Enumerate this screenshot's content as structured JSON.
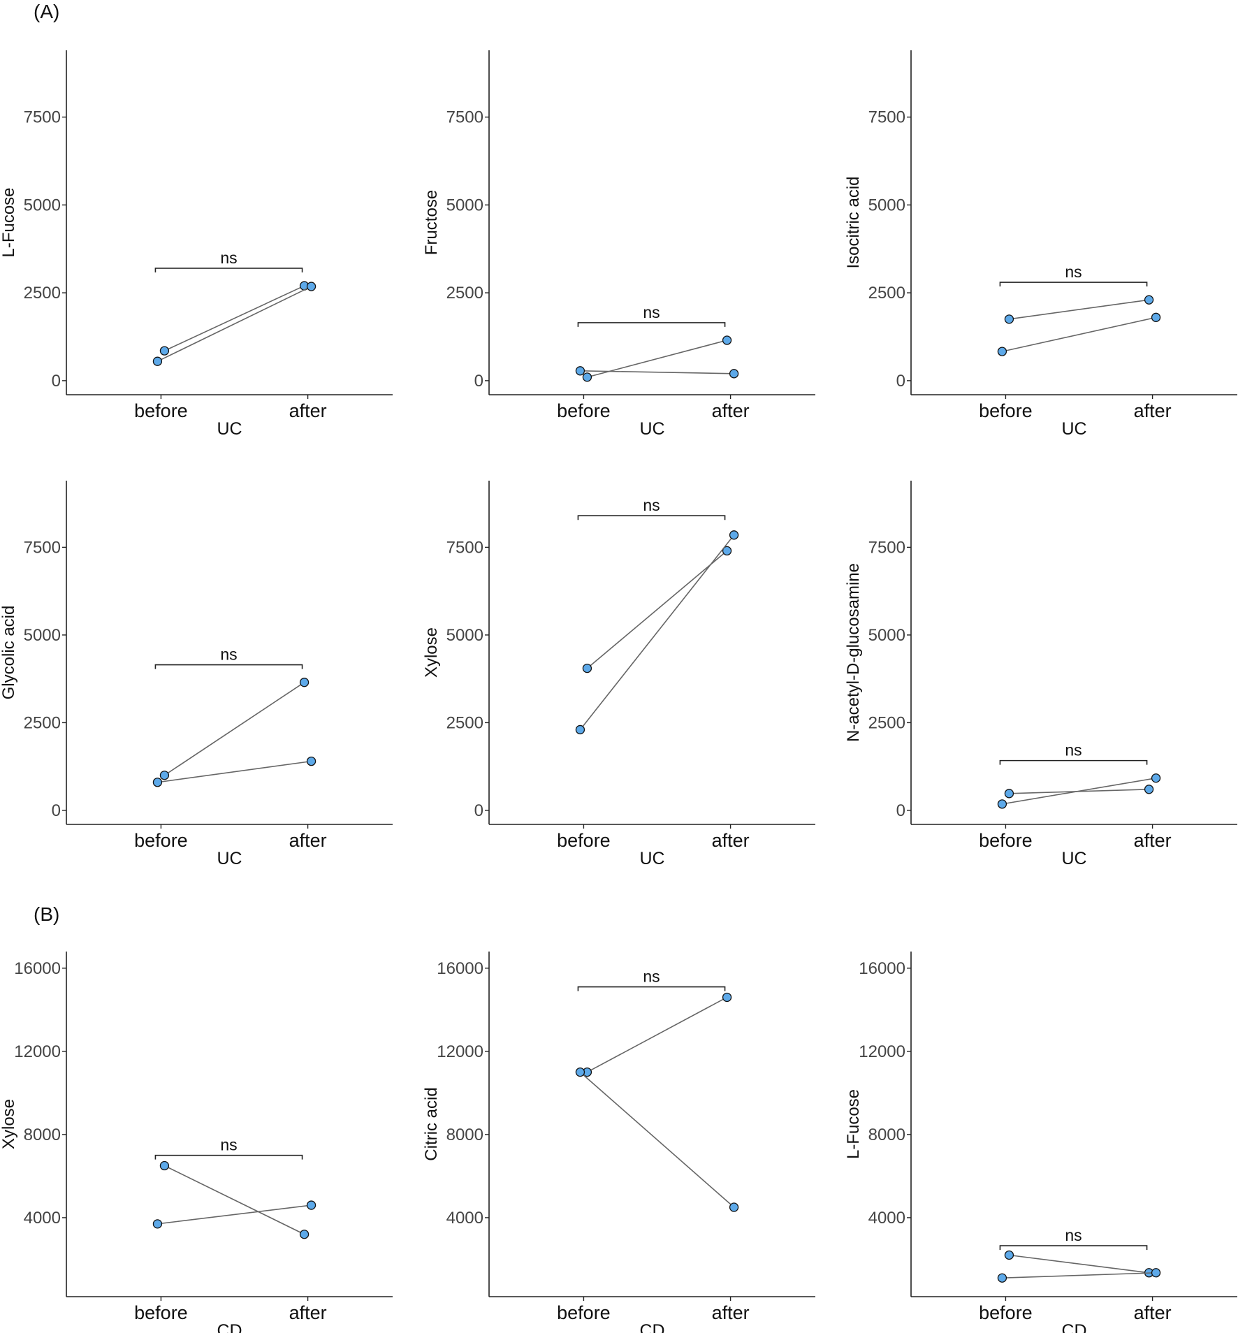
{
  "panel_labels": [
    "(A)",
    "(B)"
  ],
  "chart_data": [
    {
      "type": "scatter",
      "panel": "(A)",
      "ylabel": "L-Fucose",
      "xlabel": "UC",
      "categories": [
        "before",
        "after"
      ],
      "y_ticks": [
        0,
        2500,
        5000,
        7500
      ],
      "ylim": [
        -400,
        9400
      ],
      "pairs": [
        [
          850,
          2700
        ],
        [
          550,
          2680
        ]
      ],
      "significance": "ns",
      "bracket_y": 3200,
      "grid": false,
      "legend": "none",
      "point_color": "#5DA9E9"
    },
    {
      "type": "scatter",
      "panel": "(A)",
      "ylabel": "Fructose",
      "xlabel": "UC",
      "categories": [
        "before",
        "after"
      ],
      "y_ticks": [
        0,
        2500,
        5000,
        7500
      ],
      "ylim": [
        -400,
        9400
      ],
      "pairs": [
        [
          100,
          1150
        ],
        [
          280,
          200
        ]
      ],
      "significance": "ns",
      "bracket_y": 1650,
      "grid": false,
      "legend": "none",
      "point_color": "#5DA9E9"
    },
    {
      "type": "scatter",
      "panel": "(A)",
      "ylabel": "Isocitric acid",
      "xlabel": "UC",
      "categories": [
        "before",
        "after"
      ],
      "y_ticks": [
        0,
        2500,
        5000,
        7500
      ],
      "ylim": [
        -400,
        9400
      ],
      "pairs": [
        [
          1750,
          2300
        ],
        [
          830,
          1800
        ]
      ],
      "significance": "ns",
      "bracket_y": 2800,
      "grid": false,
      "legend": "none",
      "point_color": "#5DA9E9"
    },
    {
      "type": "scatter",
      "panel": "(A)",
      "ylabel": "Glycolic acid",
      "xlabel": "UC",
      "categories": [
        "before",
        "after"
      ],
      "y_ticks": [
        0,
        2500,
        5000,
        7500
      ],
      "ylim": [
        -400,
        9400
      ],
      "pairs": [
        [
          1000,
          3650
        ],
        [
          800,
          1400
        ]
      ],
      "significance": "ns",
      "bracket_y": 4150,
      "grid": false,
      "legend": "none",
      "point_color": "#5DA9E9"
    },
    {
      "type": "scatter",
      "panel": "(A)",
      "ylabel": "Xylose",
      "xlabel": "UC",
      "categories": [
        "before",
        "after"
      ],
      "y_ticks": [
        0,
        2500,
        5000,
        7500
      ],
      "ylim": [
        -400,
        9400
      ],
      "pairs": [
        [
          4050,
          7400
        ],
        [
          2300,
          7850
        ]
      ],
      "significance": "ns",
      "bracket_y": 8400,
      "grid": false,
      "legend": "none",
      "point_color": "#5DA9E9"
    },
    {
      "type": "scatter",
      "panel": "(A)",
      "ylabel": "N-acetyl-D-glucosamine",
      "xlabel": "UC",
      "categories": [
        "before",
        "after"
      ],
      "y_ticks": [
        0,
        2500,
        5000,
        7500
      ],
      "ylim": [
        -400,
        9400
      ],
      "pairs": [
        [
          480,
          600
        ],
        [
          180,
          920
        ]
      ],
      "significance": "ns",
      "bracket_y": 1420,
      "grid": false,
      "legend": "none",
      "point_color": "#5DA9E9"
    },
    {
      "type": "scatter",
      "panel": "(B)",
      "ylabel": "Xylose",
      "xlabel": "CD",
      "categories": [
        "before",
        "after"
      ],
      "y_ticks": [
        4000,
        8000,
        12000,
        16000
      ],
      "ylim": [
        200,
        16800
      ],
      "pairs": [
        [
          6500,
          3200
        ],
        [
          3700,
          4600
        ]
      ],
      "significance": "ns",
      "bracket_y": 7000,
      "grid": false,
      "legend": "none",
      "point_color": "#5DA9E9"
    },
    {
      "type": "scatter",
      "panel": "(B)",
      "ylabel": "Citric acid",
      "xlabel": "CD",
      "categories": [
        "before",
        "after"
      ],
      "y_ticks": [
        4000,
        8000,
        12000,
        16000
      ],
      "ylim": [
        200,
        16800
      ],
      "pairs": [
        [
          11000,
          14600
        ],
        [
          11000,
          4500
        ]
      ],
      "significance": "ns",
      "bracket_y": 15100,
      "grid": false,
      "legend": "none",
      "point_color": "#5DA9E9"
    },
    {
      "type": "scatter",
      "panel": "(B)",
      "ylabel": "L-Fucose",
      "xlabel": "CD",
      "categories": [
        "before",
        "after"
      ],
      "y_ticks": [
        4000,
        8000,
        12000,
        16000
      ],
      "ylim": [
        200,
        16800
      ],
      "pairs": [
        [
          2200,
          1350
        ],
        [
          1100,
          1350
        ]
      ],
      "significance": "ns",
      "bracket_y": 2650,
      "grid": false,
      "legend": "none",
      "point_color": "#5DA9E9"
    }
  ]
}
